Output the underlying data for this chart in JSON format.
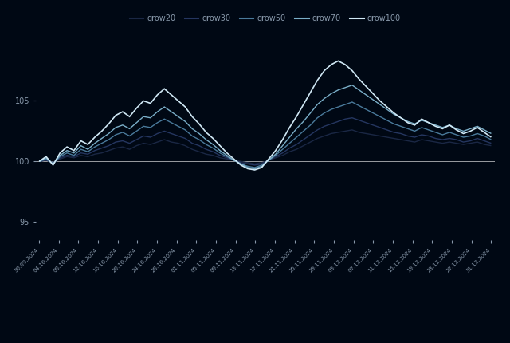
{
  "background_color": "#000814",
  "plot_bg_color": "#000814",
  "legend_labels": [
    "grow20",
    "grow30",
    "grow50",
    "grow70",
    "grow100"
  ],
  "line_colors": [
    "#1a2744",
    "#253660",
    "#4a7a9b",
    "#7aaec8",
    "#d0e8f5"
  ],
  "line_widths": [
    1.0,
    1.0,
    1.0,
    1.0,
    1.2
  ],
  "x_labels": [
    "30.09.2024",
    "04.10.2024",
    "08.10.2024",
    "12.10.2024",
    "16.10.2024",
    "20.10.2024",
    "24.10.2024",
    "28.10.2024",
    "01.11.2024",
    "05.11.2024",
    "09.11.2024",
    "13.11.2024",
    "17.11.2024",
    "21.11.2024",
    "25.11.2024",
    "29.11.2024",
    "03.12.2024",
    "07.12.2024",
    "11.12.2024",
    "15.12.2024",
    "19.12.2024",
    "23.12.2024",
    "27.12.2024",
    "31.12.2024"
  ],
  "yticks": [
    95,
    100,
    105
  ],
  "ylim": [
    93.5,
    110.5
  ],
  "grid_color": "#cccccc",
  "tick_color": "#8898aa",
  "series": {
    "grow20": [
      100.0,
      100.1,
      99.9,
      100.2,
      100.4,
      100.3,
      100.5,
      100.4,
      100.6,
      100.7,
      100.9,
      101.1,
      101.2,
      101.0,
      101.3,
      101.5,
      101.4,
      101.6,
      101.8,
      101.6,
      101.5,
      101.3,
      101.0,
      100.8,
      100.6,
      100.5,
      100.3,
      100.2,
      100.1,
      100.0,
      99.9,
      99.8,
      99.9,
      100.1,
      100.3,
      100.5,
      100.8,
      101.0,
      101.3,
      101.6,
      101.9,
      102.1,
      102.3,
      102.4,
      102.5,
      102.6,
      102.4,
      102.3,
      102.2,
      102.1,
      102.0,
      101.9,
      101.8,
      101.7,
      101.6,
      101.8,
      101.7,
      101.6,
      101.5,
      101.6,
      101.5,
      101.4,
      101.5,
      101.6,
      101.4,
      101.3
    ],
    "grow30": [
      100.0,
      100.1,
      99.9,
      100.3,
      100.5,
      100.4,
      100.7,
      100.6,
      100.9,
      101.1,
      101.3,
      101.6,
      101.7,
      101.5,
      101.8,
      102.1,
      102.0,
      102.3,
      102.5,
      102.3,
      102.1,
      101.9,
      101.5,
      101.3,
      101.0,
      100.8,
      100.5,
      100.3,
      100.1,
      99.9,
      99.8,
      99.7,
      99.8,
      100.1,
      100.4,
      100.7,
      101.1,
      101.4,
      101.8,
      102.2,
      102.6,
      102.9,
      103.1,
      103.3,
      103.5,
      103.6,
      103.4,
      103.2,
      103.0,
      102.8,
      102.6,
      102.4,
      102.3,
      102.1,
      102.0,
      102.2,
      102.1,
      101.9,
      101.8,
      101.9,
      101.8,
      101.6,
      101.7,
      101.9,
      101.7,
      101.5
    ],
    "grow50": [
      100.0,
      100.2,
      99.8,
      100.4,
      100.7,
      100.5,
      101.0,
      100.8,
      101.2,
      101.5,
      101.8,
      102.2,
      102.4,
      102.1,
      102.5,
      102.9,
      102.8,
      103.2,
      103.5,
      103.2,
      102.9,
      102.6,
      102.1,
      101.8,
      101.4,
      101.1,
      100.7,
      100.4,
      100.1,
      99.8,
      99.6,
      99.5,
      99.7,
      100.1,
      100.5,
      101.0,
      101.5,
      102.0,
      102.5,
      103.0,
      103.6,
      104.0,
      104.3,
      104.5,
      104.7,
      104.9,
      104.6,
      104.3,
      104.0,
      103.7,
      103.4,
      103.1,
      102.9,
      102.7,
      102.5,
      102.8,
      102.6,
      102.4,
      102.2,
      102.4,
      102.2,
      102.0,
      102.1,
      102.3,
      102.1,
      101.8
    ],
    "grow70": [
      100.0,
      100.3,
      99.8,
      100.5,
      100.9,
      100.7,
      101.3,
      101.0,
      101.5,
      101.9,
      102.3,
      102.8,
      103.0,
      102.7,
      103.2,
      103.7,
      103.6,
      104.1,
      104.5,
      104.1,
      103.7,
      103.3,
      102.7,
      102.3,
      101.8,
      101.4,
      100.9,
      100.5,
      100.1,
      99.8,
      99.5,
      99.4,
      99.6,
      100.1,
      100.6,
      101.3,
      102.0,
      102.7,
      103.3,
      104.0,
      104.7,
      105.2,
      105.6,
      105.9,
      106.1,
      106.3,
      105.9,
      105.5,
      105.1,
      104.7,
      104.3,
      103.9,
      103.6,
      103.3,
      103.1,
      103.4,
      103.2,
      103.0,
      102.8,
      103.0,
      102.7,
      102.5,
      102.7,
      102.9,
      102.6,
      102.3
    ],
    "grow100": [
      100.0,
      100.4,
      99.7,
      100.7,
      101.2,
      100.9,
      101.7,
      101.4,
      102.0,
      102.5,
      103.1,
      103.8,
      104.1,
      103.7,
      104.4,
      105.0,
      104.8,
      105.5,
      106.0,
      105.5,
      105.0,
      104.5,
      103.7,
      103.1,
      102.4,
      101.9,
      101.3,
      100.7,
      100.2,
      99.7,
      99.4,
      99.3,
      99.5,
      100.2,
      100.9,
      101.8,
      102.8,
      103.7,
      104.7,
      105.7,
      106.7,
      107.5,
      108.0,
      108.3,
      108.0,
      107.5,
      106.8,
      106.2,
      105.6,
      105.0,
      104.5,
      104.0,
      103.6,
      103.2,
      103.0,
      103.5,
      103.2,
      102.9,
      102.7,
      103.0,
      102.6,
      102.3,
      102.5,
      102.8,
      102.4,
      102.0
    ]
  },
  "x_tick_positions": [
    0,
    4,
    8,
    12,
    16,
    20,
    24,
    28,
    32,
    36,
    40,
    44,
    48,
    52,
    56,
    60,
    64
  ],
  "x_tick_labels_at_positions": [
    "30.09.2024",
    "04.10.2024",
    "08.10.2024",
    "12.10.2024",
    "16.10.2024",
    "20.10.2024",
    "24.10.2024",
    "28.10.2024",
    "01.11.2024",
    "05.11.2024",
    "09.11.2024",
    "13.11.2024",
    "17.11.2024",
    "21.11.2024",
    "25.11.2024",
    "29.11.2024",
    "03.12.2024"
  ],
  "all_x_tick_labels": [
    "30.09.2024",
    "04.10.2024",
    "08.10.2024",
    "12.10.2024",
    "16.10.2024",
    "20.10.2024",
    "24.10.2024",
    "28.10.2024",
    "01.11.2024",
    "05.11.2024",
    "09.11.2024",
    "13.11.2024",
    "17.11.2024",
    "21.11.2024",
    "25.11.2024",
    "29.11.2024",
    "03.12.2024",
    "07.12.2024",
    "11.12.2024",
    "15.12.2024",
    "19.12.2024",
    "23.12.2024",
    "27.12.2024",
    "31.12.2024"
  ]
}
